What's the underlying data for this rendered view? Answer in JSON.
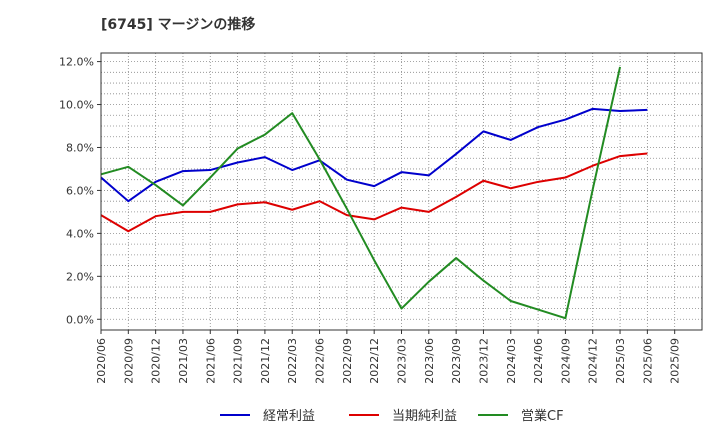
{
  "chart_data": {
    "type": "line",
    "title": "[6745]  マージンの推移",
    "xlabel": "",
    "ylabel": "",
    "categories": [
      "2020/06",
      "2020/09",
      "2020/12",
      "2021/03",
      "2021/06",
      "2021/09",
      "2021/12",
      "2022/03",
      "2022/06",
      "2022/09",
      "2022/12",
      "2023/03",
      "2023/06",
      "2023/09",
      "2023/12",
      "2024/03",
      "2024/06",
      "2024/09",
      "2024/12",
      "2025/03",
      "2025/06",
      "2025/09"
    ],
    "ylim": [
      -0.5,
      12.4
    ],
    "yticks": [
      0,
      2,
      4,
      6,
      8,
      10,
      12
    ],
    "ytick_labels": [
      "0.0%",
      "2.0%",
      "4.0%",
      "6.0%",
      "8.0%",
      "10.0%",
      "12.0%"
    ],
    "grid": true,
    "legend_position": "bottom",
    "series": [
      {
        "name": "経常利益",
        "color": "#0000cc",
        "values": [
          6.6,
          5.5,
          6.4,
          6.9,
          6.95,
          7.3,
          7.55,
          6.95,
          7.4,
          6.5,
          6.2,
          6.85,
          6.7,
          7.7,
          8.75,
          8.35,
          8.95,
          9.3,
          9.8,
          9.7,
          9.75,
          null
        ]
      },
      {
        "name": "当期純利益",
        "color": "#dd0000",
        "values": [
          4.85,
          4.1,
          4.8,
          5.0,
          5.0,
          5.35,
          5.45,
          5.1,
          5.5,
          4.85,
          4.65,
          5.2,
          5.0,
          5.7,
          6.45,
          6.1,
          6.4,
          6.6,
          7.15,
          7.6,
          7.72,
          null
        ]
      },
      {
        "name": "営業CF",
        "color": "#228b22",
        "values": [
          6.75,
          7.1,
          6.25,
          5.3,
          6.6,
          7.95,
          8.6,
          9.6,
          7.45,
          5.15,
          2.75,
          0.5,
          1.75,
          2.85,
          1.8,
          0.85,
          0.45,
          0.05,
          6.05,
          11.75,
          null,
          null
        ]
      }
    ]
  }
}
